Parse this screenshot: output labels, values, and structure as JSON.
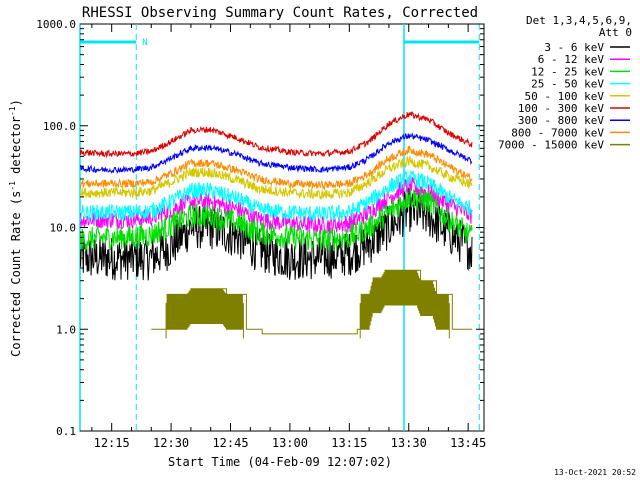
{
  "chart_data": {
    "type": "line",
    "title": "RHESSI Observing Summary Count Rates, Corrected",
    "xlabel": "Start Time (04-Feb-09 12:07:02)",
    "ylabel_main": "Corrected Count Rate (s",
    "ylabel_sup1": "-1",
    "ylabel_mid": " detector",
    "ylabel_sup2": "-1",
    "ylabel_end": ")",
    "yscale": "log",
    "ylim": [
      0.1,
      1000
    ],
    "xlim_minutes": [
      727.0,
      829.0
    ],
    "y_ticks": [
      {
        "value": 1000,
        "label": "1000.0"
      },
      {
        "value": 100,
        "label": "100.0"
      },
      {
        "value": 10,
        "label": "10.0"
      },
      {
        "value": 1,
        "label": "1.0"
      },
      {
        "value": 0.1,
        "label": "0.1"
      }
    ],
    "x_ticks": [
      {
        "value": 735,
        "label": "12:15"
      },
      {
        "value": 750,
        "label": "12:30"
      },
      {
        "value": 765,
        "label": "12:45"
      },
      {
        "value": 780,
        "label": "13:00"
      },
      {
        "value": 795,
        "label": "13:15"
      },
      {
        "value": 810,
        "label": "13:30"
      },
      {
        "value": 825,
        "label": "13:45"
      }
    ],
    "legend": {
      "placement": "right",
      "header_line1": "Det 1,3,4,5,6,9,",
      "header_line2": "Att 0",
      "entries": [
        {
          "label": "3 - 6 keV",
          "color": "#000000"
        },
        {
          "label": "6 - 12 keV",
          "color": "#ff00ff"
        },
        {
          "label": "12 - 25 keV",
          "color": "#00e000"
        },
        {
          "label": "25 - 50 keV",
          "color": "#00ffff"
        },
        {
          "label": "50 - 100 keV",
          "color": "#d4c800"
        },
        {
          "label": "100 - 300 keV",
          "color": "#e00000"
        },
        {
          "label": "300 - 800 keV",
          "color": "#0000ff"
        },
        {
          "label": "800 - 7000 keV",
          "color": "#ff8c00"
        },
        {
          "label": "7000 - 15000 keV",
          "color": "#808000"
        }
      ]
    },
    "series": [
      {
        "name": "3 - 6 keV",
        "color": "#000000",
        "noise": 0.22,
        "x": [
          727,
          733,
          740,
          745,
          750,
          755,
          760,
          767,
          772,
          780,
          788,
          795,
          800,
          805,
          810,
          815,
          820,
          826
        ],
        "y": [
          5,
          5,
          5,
          5,
          6.5,
          10,
          10,
          8,
          6,
          5,
          5,
          5.5,
          7,
          10,
          15,
          13,
          9,
          6
        ]
      },
      {
        "name": "6 - 12 keV",
        "color": "#ff00ff",
        "noise": 0.09,
        "x": [
          727,
          733,
          740,
          745,
          750,
          755,
          760,
          767,
          772,
          780,
          788,
          795,
          800,
          805,
          810,
          815,
          820,
          826
        ],
        "y": [
          12,
          12,
          12,
          12.5,
          15,
          18,
          18,
          15,
          12,
          11,
          10.5,
          11,
          14,
          20,
          26,
          22,
          17,
          13
        ]
      },
      {
        "name": "12 - 25 keV",
        "color": "#00e000",
        "noise": 0.12,
        "x": [
          727,
          733,
          740,
          745,
          750,
          755,
          760,
          767,
          772,
          780,
          788,
          795,
          800,
          805,
          810,
          815,
          820,
          826
        ],
        "y": [
          7.5,
          8,
          8,
          8.5,
          10.5,
          13,
          13,
          11,
          9,
          8,
          7.5,
          8,
          10,
          14,
          20,
          18,
          12,
          8
        ]
      },
      {
        "name": "25 - 50 keV",
        "color": "#00ffff",
        "noise": 0.08,
        "x": [
          727,
          733,
          740,
          745,
          750,
          755,
          760,
          767,
          772,
          780,
          788,
          795,
          800,
          805,
          810,
          815,
          820,
          826
        ],
        "y": [
          14,
          14,
          14,
          14.5,
          18,
          23,
          23,
          19,
          15,
          14,
          13.5,
          14,
          18,
          25,
          31,
          27,
          20,
          15
        ]
      },
      {
        "name": "50 - 100 keV",
        "color": "#d4c800",
        "noise": 0.05,
        "x": [
          727,
          733,
          740,
          745,
          750,
          755,
          760,
          767,
          772,
          780,
          788,
          795,
          800,
          805,
          810,
          815,
          820,
          826
        ],
        "y": [
          22,
          22,
          22,
          23,
          28,
          35,
          35,
          29,
          24,
          22,
          21,
          22,
          28,
          38,
          45,
          40,
          32,
          26
        ]
      },
      {
        "name": "100 - 300 keV",
        "color": "#e00000",
        "noise": 0.03,
        "x": [
          727,
          733,
          740,
          745,
          750,
          755,
          760,
          767,
          772,
          780,
          788,
          795,
          800,
          805,
          810,
          815,
          820,
          826
        ],
        "y": [
          55,
          53,
          53,
          56,
          70,
          90,
          92,
          75,
          62,
          55,
          53,
          56,
          70,
          105,
          130,
          115,
          85,
          65
        ]
      },
      {
        "name": "300 - 800 keV",
        "color": "#0000ff",
        "noise": 0.03,
        "x": [
          727,
          733,
          740,
          745,
          750,
          755,
          760,
          767,
          772,
          780,
          788,
          795,
          800,
          805,
          810,
          815,
          820,
          826
        ],
        "y": [
          38,
          37,
          37,
          39,
          48,
          60,
          61,
          52,
          43,
          39,
          37,
          39,
          48,
          68,
          80,
          72,
          58,
          45
        ]
      },
      {
        "name": "800 - 7000 keV",
        "color": "#ff8c00",
        "noise": 0.04,
        "x": [
          727,
          733,
          740,
          745,
          750,
          755,
          760,
          767,
          772,
          780,
          788,
          795,
          800,
          805,
          810,
          815,
          820,
          826
        ],
        "y": [
          27,
          27,
          27,
          28,
          34,
          43,
          43,
          36,
          30,
          27,
          26,
          27,
          34,
          48,
          58,
          52,
          40,
          30
        ]
      },
      {
        "name": "7000 - 15000 keV",
        "color": "#808000",
        "noise": 0,
        "step": true,
        "x": [
          745,
          748,
          749,
          754,
          755,
          763,
          764,
          768,
          769,
          772,
          773,
          797,
          798,
          800,
          801,
          803,
          804,
          812,
          813,
          816,
          817,
          820,
          821,
          826
        ],
        "y": [
          1,
          1,
          2.2,
          2.2,
          2.5,
          2.5,
          2.2,
          2.2,
          1,
          1,
          0.9,
          1,
          2.2,
          2.2,
          3.2,
          3.2,
          3.8,
          3.8,
          3.0,
          3.0,
          2.2,
          2.2,
          1,
          1
        ]
      }
    ],
    "flags": [
      {
        "label": "N",
        "x1": 727.0,
        "x2": 741.2
      },
      {
        "label": "",
        "x1": 808.8,
        "x2": 827.8
      }
    ]
  },
  "footer_date": "13-Oct-2021 20:52"
}
